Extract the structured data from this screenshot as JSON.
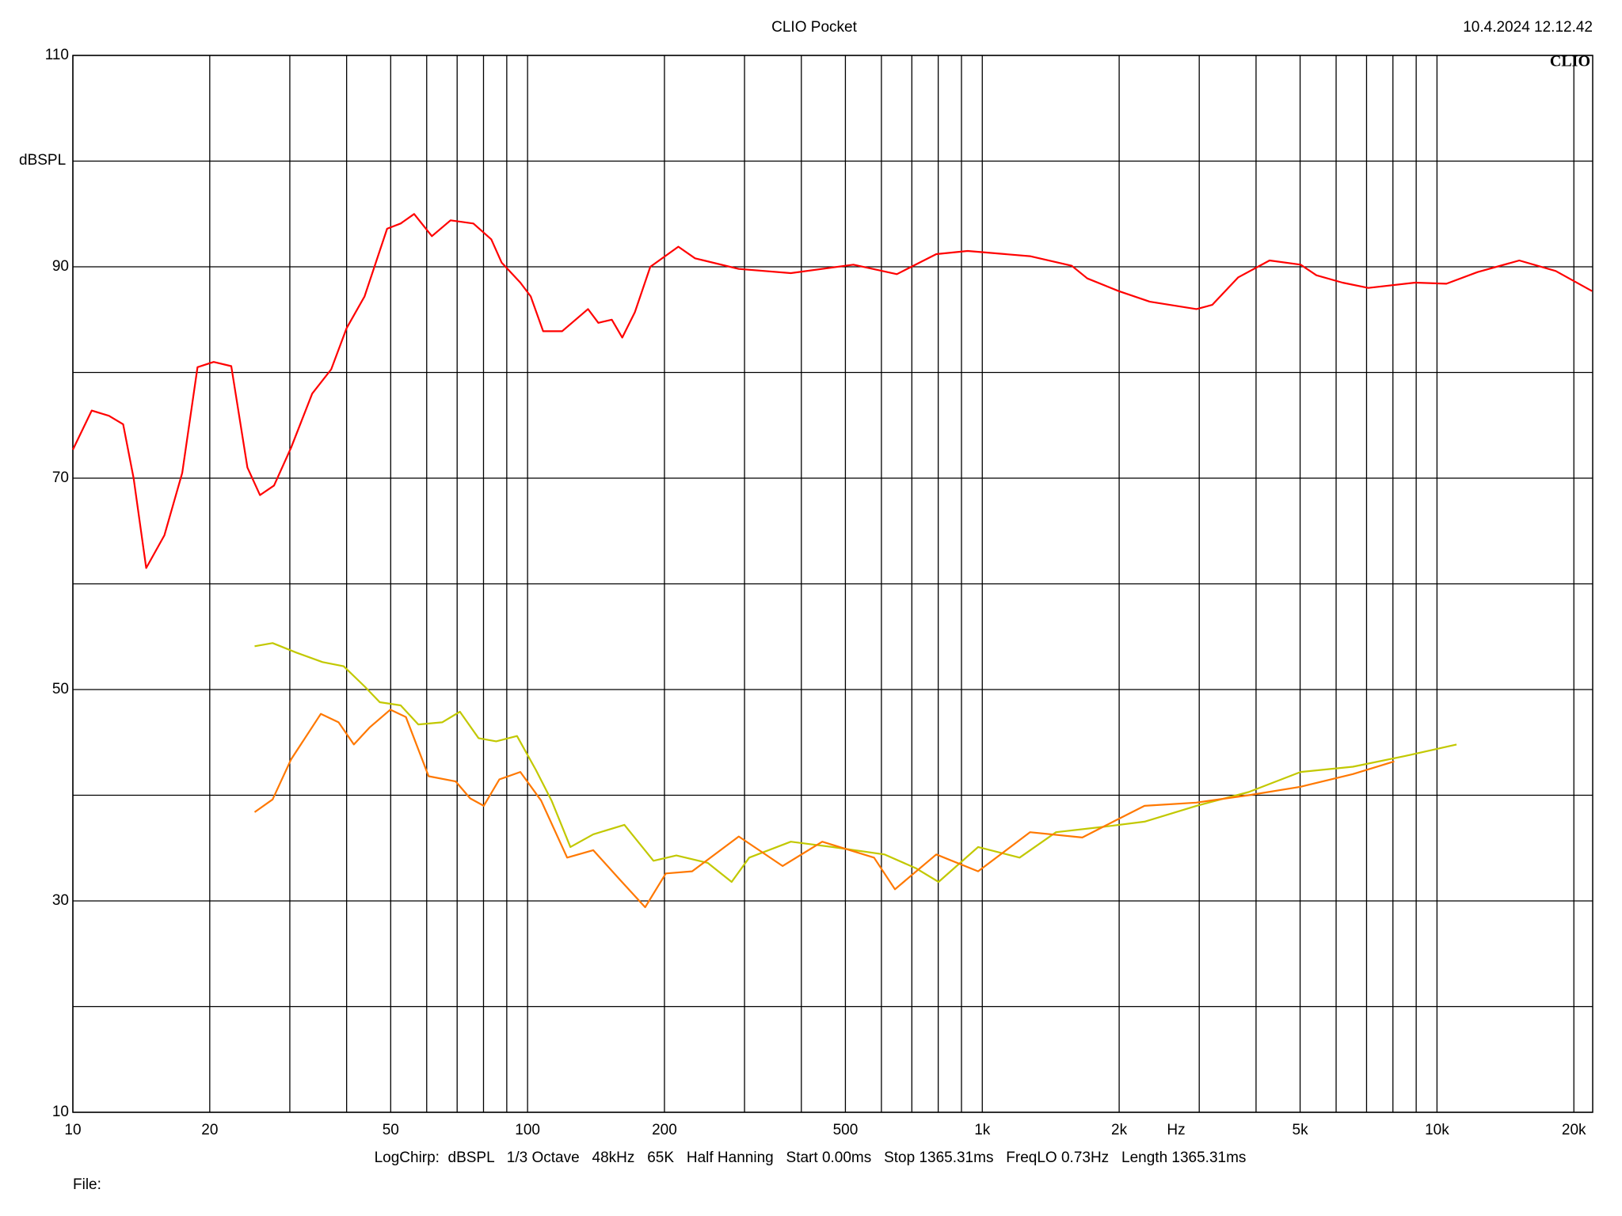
{
  "chart_data": {
    "type": "line",
    "title": "CLIO Pocket",
    "timestamp": "10.4.2024 12.12.42",
    "logo": "CLIO",
    "y_label": "dBSPL",
    "x_label": "Hz",
    "footer": "LogChirp:  dBSPL   1/3 Octave   48kHz   65K   Half Hanning   Start 0.00ms   Stop 1365.31ms   FreqLO 0.73Hz   Length 1365.31ms",
    "file_label": "File:",
    "log_x": true,
    "grid": true,
    "xlim": [
      10,
      22000
    ],
    "ylim": [
      10,
      110
    ],
    "xticks": [
      10,
      20,
      50,
      100,
      200,
      500,
      {
        "value": 1000,
        "label": "1k"
      },
      {
        "value": 2000,
        "label": "2k"
      },
      {
        "value": 5000,
        "label": "5k"
      },
      {
        "value": 10000,
        "label": "10k"
      },
      {
        "value": 20000,
        "label": "20k"
      }
    ],
    "minor_xgrid": [
      30,
      40,
      60,
      70,
      80,
      90,
      300,
      400,
      600,
      700,
      800,
      900,
      3000,
      4000,
      6000,
      7000,
      8000,
      9000
    ],
    "yticks": [
      10,
      30,
      50,
      70,
      90,
      110
    ],
    "minor_ygrid": [
      20,
      40,
      60,
      80,
      100
    ],
    "series": [
      {
        "color": "#ff0000",
        "x": [
          10,
          11,
          12,
          12.9,
          13.6,
          14.5,
          15.9,
          17.4,
          18.8,
          20.4,
          22.3,
          24.2,
          25.8,
          27.7,
          30.2,
          33.6,
          37,
          40,
          43.8,
          49.1,
          52.6,
          56.3,
          61.6,
          67.7,
          76,
          83.2,
          87.7,
          96.4,
          101.6,
          108.2,
          119.1,
          135.8,
          143.1,
          153.2,
          161.5,
          172.2,
          186.2,
          214.6,
          233.5,
          291.4,
          379.2,
          520.6,
          648.8,
          792.3,
          928.5,
          1273,
          1573,
          1702,
          1995,
          2336,
          2958,
          3204,
          3656,
          4283,
          5012,
          5430,
          6194,
          7063,
          8954,
          10490,
          12280,
          15170,
          18240,
          21930
        ],
        "values": [
          72.7,
          76.4,
          75.9,
          75.1,
          70.0,
          61.5,
          64.6,
          70.5,
          80.5,
          81.0,
          80.6,
          71.0,
          68.4,
          69.3,
          72.9,
          78.0,
          80.3,
          84.2,
          87.2,
          93.6,
          94.1,
          95.0,
          92.9,
          94.4,
          94.1,
          92.6,
          90.4,
          88.5,
          87.2,
          83.9,
          83.9,
          86.0,
          84.7,
          85.0,
          83.3,
          85.7,
          90.0,
          91.9,
          90.8,
          89.8,
          89.4,
          90.2,
          89.3,
          91.2,
          91.5,
          91.0,
          90.1,
          88.9,
          87.7,
          86.7,
          86.0,
          86.4,
          89.0,
          90.6,
          90.2,
          89.2,
          88.5,
          88.0,
          88.5,
          88.4,
          89.5,
          90.6,
          89.6,
          87.7
        ]
      },
      {
        "color": "#c2c800",
        "x": [
          25.1,
          27.5,
          31,
          35.4,
          39.4,
          43.8,
          47.3,
          52.6,
          57.5,
          64.9,
          71,
          78,
          85.3,
          94.8,
          104.3,
          112.9,
          124.2,
          139.4,
          163.3,
          189.2,
          212.4,
          248.9,
          281,
          307.2,
          379.2,
          467.8,
          609.3,
          713.8,
          801.4,
          979,
          1208,
          1453,
          1841,
          2274,
          2958,
          3851,
          5012,
          6531,
          8492,
          11040
        ],
        "values": [
          54.1,
          54.4,
          53.5,
          52.6,
          52.2,
          50.3,
          48.8,
          48.5,
          46.7,
          46.9,
          47.9,
          45.4,
          45.1,
          45.6,
          42.4,
          39.5,
          35.1,
          36.3,
          37.2,
          33.8,
          34.3,
          33.6,
          31.8,
          34.1,
          35.6,
          35.1,
          34.4,
          33.1,
          31.8,
          35.1,
          34.1,
          36.5,
          37.0,
          37.5,
          39.0,
          40.3,
          42.2,
          42.7,
          43.7,
          44.8
        ]
      },
      {
        "color": "#ff7800",
        "x": [
          25.1,
          27.5,
          30.2,
          35.1,
          38.4,
          41.5,
          44.9,
          49.9,
          54,
          60.6,
          69.5,
          74.8,
          80.1,
          86.7,
          96.4,
          107.1,
          122.2,
          139.4,
          158.9,
          181.4,
          201.4,
          230.1,
          291.4,
          363.8,
          444.6,
          578.1,
          642.7,
          792.3,
          979,
          1273,
          1660,
          1941,
          2274,
          2958,
          3851,
          5012,
          6531,
          8054
        ],
        "values": [
          38.4,
          39.6,
          43.4,
          47.7,
          46.9,
          44.8,
          46.4,
          48.1,
          47.4,
          41.8,
          41.3,
          39.7,
          39.0,
          41.5,
          42.2,
          39.5,
          34.1,
          34.8,
          32.1,
          29.4,
          32.6,
          32.8,
          36.1,
          33.3,
          35.6,
          34.1,
          31.1,
          34.4,
          32.8,
          36.5,
          36.0,
          37.5,
          39.0,
          39.3,
          40.0,
          40.8,
          42.0,
          43.2
        ]
      }
    ]
  }
}
